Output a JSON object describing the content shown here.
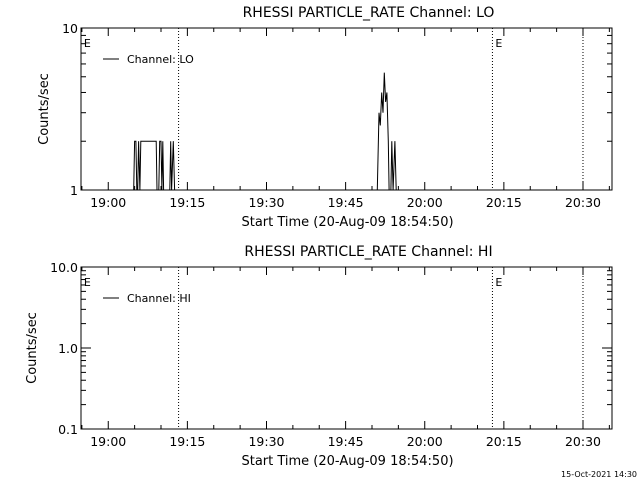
{
  "footer": {
    "timestamp": "15-Oct-2021 14:30"
  },
  "chart_data": [
    {
      "type": "line",
      "title": "RHESSI PARTICLE_RATE Channel: LO",
      "xlabel": "Start Time (20-Aug-09 18:54:50)",
      "ylabel": "Counts/sec",
      "yscale": "log",
      "xlim": [
        "18:54:50",
        "20:35:30"
      ],
      "ylim": [
        1,
        10
      ],
      "xticks": [
        "19:00",
        "19:15",
        "19:30",
        "19:45",
        "20:00",
        "20:15",
        "20:30"
      ],
      "yticks": [
        "1",
        "10"
      ],
      "legend": "top-left",
      "event_lines": [
        "19:13:20",
        "20:12:50",
        "20:30:00"
      ],
      "event_markers": [
        {
          "label": "E",
          "x": "18:55:00"
        },
        {
          "label": "E",
          "x": "20:13:00"
        }
      ],
      "series": [
        {
          "name": "Channel: LO",
          "points": [
            [
              "19:04:50",
              1
            ],
            [
              "19:05:00",
              2
            ],
            [
              "19:05:15",
              2
            ],
            [
              "19:05:25",
              1
            ],
            [
              "19:05:35",
              1
            ],
            [
              "19:05:45",
              2
            ],
            [
              "19:06:00",
              1
            ],
            [
              "19:06:10",
              2
            ],
            [
              "19:07:00",
              2
            ],
            [
              "19:07:15",
              2
            ],
            [
              "19:08:00",
              2
            ],
            [
              "19:09:05",
              2
            ],
            [
              "19:09:15",
              1
            ],
            [
              "19:09:35",
              1
            ],
            [
              "19:09:45",
              2
            ],
            [
              "19:10:00",
              2
            ],
            [
              "19:10:10",
              1
            ],
            [
              "19:10:20",
              2
            ],
            [
              "19:10:30",
              1
            ],
            [
              "19:11:40",
              1
            ],
            [
              "19:11:50",
              2
            ],
            [
              "19:12:00",
              1
            ],
            [
              "19:12:20",
              2
            ],
            [
              "19:12:35",
              1
            ],
            [
              "19:51:00",
              1
            ],
            [
              "19:51:20",
              3
            ],
            [
              "19:51:35",
              2.5
            ],
            [
              "19:51:50",
              4
            ],
            [
              "19:52:05",
              3
            ],
            [
              "19:52:20",
              5.3
            ],
            [
              "19:52:35",
              3.5
            ],
            [
              "19:52:50",
              4
            ],
            [
              "19:53:05",
              2
            ],
            [
              "19:53:15",
              1
            ],
            [
              "19:53:35",
              1
            ],
            [
              "19:53:45",
              2
            ],
            [
              "19:54:00",
              1
            ],
            [
              "19:54:20",
              2
            ],
            [
              "19:54:35",
              1
            ]
          ]
        }
      ]
    },
    {
      "type": "line",
      "title": "RHESSI PARTICLE_RATE Channel: HI",
      "xlabel": "Start Time (20-Aug-09 18:54:50)",
      "ylabel": "Counts/sec",
      "yscale": "log",
      "xlim": [
        "18:54:50",
        "20:35:30"
      ],
      "ylim": [
        0.1,
        10
      ],
      "xticks": [
        "19:00",
        "19:15",
        "19:30",
        "19:45",
        "20:00",
        "20:15",
        "20:30"
      ],
      "yticks": [
        "0.1",
        "1.0",
        "10.0"
      ],
      "legend": "top-left",
      "event_lines": [
        "19:13:20",
        "20:12:50",
        "20:30:00"
      ],
      "event_markers": [
        {
          "label": "E",
          "x": "18:55:00"
        },
        {
          "label": "E",
          "x": "20:13:00"
        }
      ],
      "series": [
        {
          "name": "Channel: HI",
          "points": []
        }
      ]
    }
  ]
}
